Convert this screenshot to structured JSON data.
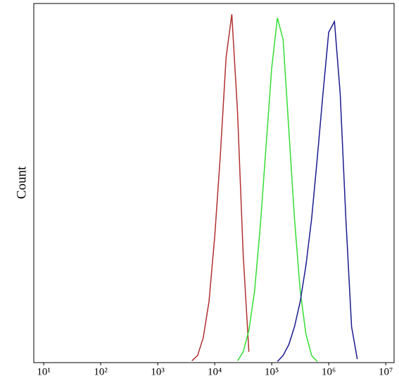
{
  "chart_data": {
    "type": "line",
    "y_label": "Count",
    "xscale": "log",
    "xlim": [
      6.7,
      14000000
    ],
    "ylim": [
      0,
      100
    ],
    "xticks": [
      {
        "value": 10,
        "label": "10¹"
      },
      {
        "value": 100,
        "label": "10²"
      },
      {
        "value": 1000,
        "label": "10³"
      },
      {
        "value": 10000,
        "label": "10⁴"
      },
      {
        "value": 100000,
        "label": "10⁵"
      },
      {
        "value": 1000000,
        "label": "10⁶"
      },
      {
        "value": 10000000,
        "label": "10⁷"
      }
    ],
    "series": [
      {
        "color": "#b03030",
        "x": [
          3981,
          5012,
          6310,
          7943,
          10000,
          12589,
          15849,
          19953,
          25119,
          31623,
          39811
        ],
        "values": [
          0.5,
          2,
          7,
          17,
          35,
          58,
          85,
          97,
          70,
          30,
          3
        ]
      },
      {
        "color": "#33dd33",
        "x": [
          25119,
          31623,
          39811,
          50119,
          63096,
          79433,
          100000,
          125893,
          158489,
          199526,
          251189,
          316228,
          398107,
          501187,
          630957
        ],
        "values": [
          0.5,
          3,
          9,
          20,
          38,
          60,
          82,
          96,
          90,
          65,
          40,
          20,
          8,
          2,
          0.3
        ]
      },
      {
        "color": "#1a1a90",
        "x": [
          125893,
          158489,
          199526,
          251189,
          316228,
          398107,
          501187,
          630957,
          794328,
          1000000,
          1258925,
          1584893,
          1995262,
          2511886,
          3162278
        ],
        "values": [
          0.3,
          2,
          5,
          10,
          17,
          27,
          40,
          57,
          75,
          92,
          95,
          75,
          40,
          10,
          1
        ]
      }
    ]
  }
}
